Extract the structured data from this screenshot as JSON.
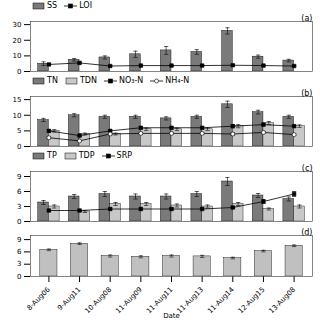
{
  "chart_data": [
    {
      "type": "bar",
      "annotation": "(a)",
      "legend": "top",
      "tick_labels": "y",
      "categories": [
        "8-Aug06",
        "9-Aug11",
        "10-Aug08",
        "11-Aug09",
        "11-Aug11",
        "11-Aug13",
        "11-Aug14",
        "12-Aug15",
        "13-Aug08"
      ],
      "series": [
        {
          "name": "SS",
          "type": "bar",
          "color": "#7a7a7a",
          "values": [
            5.0,
            7.5,
            9.0,
            11.0,
            13.5,
            12.5,
            26.0,
            9.5,
            7.0
          ],
          "errors": [
            1.2,
            0.8,
            1.0,
            2.0,
            2.5,
            1.5,
            2.0,
            1.0,
            0.8
          ]
        },
        {
          "name": "LOI",
          "type": "line",
          "color": "black",
          "marker": "square",
          "values": [
            4.5,
            5.5,
            3.5,
            3.8,
            3.8,
            3.8,
            4.0,
            3.8,
            3.5
          ],
          "errors": [
            0.5,
            0.6,
            0.3,
            0.3,
            0.3,
            0.3,
            0.3,
            0.3,
            0.3
          ]
        }
      ],
      "ylim": [
        0,
        32
      ],
      "yticks": [
        0,
        10,
        20,
        30
      ]
    },
    {
      "type": "bar",
      "annotation": "(b)",
      "legend": "top",
      "tick_labels": "y",
      "categories": [
        "8-Aug06",
        "9-Aug11",
        "10-Aug08",
        "11-Aug09",
        "11-Aug11",
        "11-Aug13",
        "11-Aug14",
        "12-Aug15",
        "13-Aug08"
      ],
      "series": [
        {
          "name": "TN",
          "type": "bar",
          "color": "#7a7a7a",
          "values": [
            8.5,
            10.0,
            9.5,
            9.5,
            9.0,
            9.5,
            13.5,
            11.0,
            9.5
          ],
          "errors": [
            0.5,
            0.5,
            0.5,
            0.5,
            0.5,
            0.5,
            1.0,
            0.6,
            0.5
          ]
        },
        {
          "name": "TDN",
          "type": "bar",
          "color": "#c8c8c8",
          "values": [
            5.0,
            4.0,
            4.0,
            5.5,
            5.5,
            5.5,
            6.5,
            7.5,
            6.5
          ],
          "errors": [
            0.4,
            0.3,
            0.3,
            0.4,
            0.4,
            0.4,
            0.5,
            0.5,
            0.4
          ]
        },
        {
          "name": "NO₃-N",
          "type": "line",
          "color": "black",
          "marker": "square",
          "values": [
            5.0,
            3.5,
            5.0,
            6.0,
            6.0,
            6.0,
            6.5,
            7.0,
            6.5
          ],
          "errors": [
            0.4,
            0.3,
            0.4,
            0.4,
            0.4,
            0.4,
            0.5,
            0.4,
            0.4
          ]
        },
        {
          "name": "NH₄-N",
          "type": "line",
          "color": "black",
          "marker": "circle",
          "values": [
            2.8,
            1.8,
            4.0,
            4.2,
            4.2,
            4.2,
            4.0,
            4.5,
            3.8
          ],
          "errors": [
            0.3,
            0.2,
            0.3,
            0.3,
            0.3,
            0.3,
            0.4,
            0.3,
            0.3
          ]
        }
      ],
      "ylim": [
        0,
        16
      ],
      "yticks": [
        0,
        5,
        10,
        15
      ]
    },
    {
      "type": "bar",
      "annotation": "(c)",
      "legend": "top",
      "tick_labels": "y",
      "categories": [
        "8-Aug06",
        "9-Aug11",
        "10-Aug08",
        "11-Aug09",
        "11-Aug11",
        "11-Aug13",
        "11-Aug14",
        "12-Aug15",
        "13-Aug08"
      ],
      "series": [
        {
          "name": "TP",
          "type": "bar",
          "color": "#7a7a7a",
          "values": [
            3.8,
            5.0,
            5.5,
            5.0,
            5.0,
            5.5,
            8.0,
            5.2,
            4.5
          ],
          "errors": [
            0.4,
            0.4,
            0.5,
            0.5,
            0.5,
            0.5,
            0.8,
            0.4,
            0.4
          ]
        },
        {
          "name": "TDP",
          "type": "bar",
          "color": "#c8c8c8",
          "values": [
            3.0,
            2.0,
            3.5,
            3.5,
            3.2,
            3.0,
            3.5,
            2.5,
            3.0
          ],
          "errors": [
            0.3,
            0.2,
            0.3,
            0.3,
            0.3,
            0.3,
            0.3,
            0.2,
            0.3
          ]
        },
        {
          "name": "SRP",
          "type": "line",
          "color": "black",
          "marker": "square",
          "values": [
            2.2,
            2.2,
            2.5,
            2.5,
            2.5,
            2.5,
            2.8,
            4.0,
            5.5
          ],
          "errors": [
            0.2,
            0.2,
            0.2,
            0.2,
            0.2,
            0.2,
            0.2,
            0.4,
            0.5
          ]
        }
      ],
      "ylim": [
        0,
        10
      ],
      "yticks": [
        0,
        3,
        6,
        9
      ]
    },
    {
      "type": "bar",
      "annotation": "(d)",
      "xlabel": "Date",
      "categories": [
        "8-Aug06",
        "9-Aug11",
        "10-Aug08",
        "11-Aug09",
        "11-Aug11",
        "11-Aug13",
        "11-Aug14",
        "12-Aug15",
        "13-Aug08"
      ],
      "values": [
        6.5,
        8.0,
        5.0,
        4.8,
        5.0,
        4.9,
        4.5,
        6.2,
        7.5
      ],
      "errors": [
        0.2,
        0.2,
        0.25,
        0.25,
        0.25,
        0.25,
        0.2,
        0.2,
        0.2
      ],
      "color": "#c0c0c0",
      "ylim": [
        0,
        10
      ],
      "yticks": [
        0,
        3,
        6,
        9
      ]
    }
  ]
}
